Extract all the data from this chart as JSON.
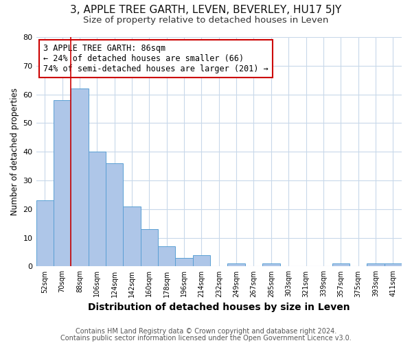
{
  "title": "3, APPLE TREE GARTH, LEVEN, BEVERLEY, HU17 5JY",
  "subtitle": "Size of property relative to detached houses in Leven",
  "xlabel": "Distribution of detached houses by size in Leven",
  "ylabel": "Number of detached properties",
  "footnote1": "Contains HM Land Registry data © Crown copyright and database right 2024.",
  "footnote2": "Contains public sector information licensed under the Open Government Licence v3.0.",
  "bin_labels": [
    "52sqm",
    "70sqm",
    "88sqm",
    "106sqm",
    "124sqm",
    "142sqm",
    "160sqm",
    "178sqm",
    "196sqm",
    "214sqm",
    "232sqm",
    "249sqm",
    "267sqm",
    "285sqm",
    "303sqm",
    "321sqm",
    "339sqm",
    "357sqm",
    "375sqm",
    "393sqm",
    "411sqm"
  ],
  "bar_heights": [
    23,
    58,
    62,
    40,
    36,
    21,
    13,
    7,
    3,
    4,
    0,
    1,
    0,
    1,
    0,
    0,
    0,
    1,
    0,
    1,
    1
  ],
  "bar_color": "#aec6e8",
  "bar_edge_color": "#5a9fd4",
  "vline_color": "#cc0000",
  "annotation_box_text": "3 APPLE TREE GARTH: 86sqm\n← 24% of detached houses are smaller (66)\n74% of semi-detached houses are larger (201) →",
  "annotation_box_color": "#cc0000",
  "annotation_text_color": "#000000",
  "ylim": [
    0,
    80
  ],
  "yticks": [
    0,
    10,
    20,
    30,
    40,
    50,
    60,
    70,
    80
  ],
  "grid_color": "#c8d8ea",
  "background_color": "#ffffff",
  "title_fontsize": 11,
  "subtitle_fontsize": 9.5,
  "xlabel_fontsize": 10,
  "ylabel_fontsize": 8.5,
  "footnote_fontsize": 7
}
